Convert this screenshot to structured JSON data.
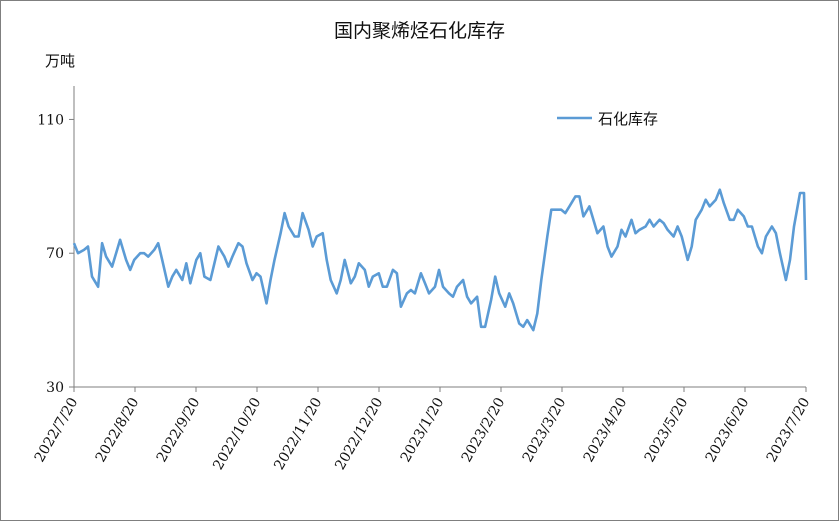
{
  "chart_data": {
    "type": "line",
    "title": "国内聚烯烃石化库存",
    "ylabel": "万吨",
    "ylim": [
      30,
      120
    ],
    "yticks": [
      30,
      70,
      110
    ],
    "grid": false,
    "legend_position": "top-right",
    "x_start": "2022-07-20",
    "x_end": "2023-07-20",
    "x_tick_labels": [
      "2022/7/20",
      "2022/8/20",
      "2022/9/20",
      "2022/10/20",
      "2022/11/20",
      "2022/12/20",
      "2023/1/20",
      "2023/2/20",
      "2023/3/20",
      "2023/4/20",
      "2023/5/20",
      "2023/6/20",
      "2023/7/20"
    ],
    "series": [
      {
        "name": "石化库存",
        "color": "#5b9bd5",
        "points": [
          [
            "2022-07-20",
            73
          ],
          [
            "2022-07-22",
            70
          ],
          [
            "2022-07-25",
            71
          ],
          [
            "2022-07-27",
            72
          ],
          [
            "2022-07-29",
            63
          ],
          [
            "2022-08-01",
            60
          ],
          [
            "2022-08-03",
            73
          ],
          [
            "2022-08-05",
            69
          ],
          [
            "2022-08-08",
            66
          ],
          [
            "2022-08-10",
            70
          ],
          [
            "2022-08-12",
            74
          ],
          [
            "2022-08-15",
            68
          ],
          [
            "2022-08-17",
            65
          ],
          [
            "2022-08-19",
            68
          ],
          [
            "2022-08-22",
            70
          ],
          [
            "2022-08-24",
            70
          ],
          [
            "2022-08-26",
            69
          ],
          [
            "2022-08-29",
            71
          ],
          [
            "2022-08-31",
            73
          ],
          [
            "2022-09-02",
            68
          ],
          [
            "2022-09-05",
            60
          ],
          [
            "2022-09-07",
            63
          ],
          [
            "2022-09-09",
            65
          ],
          [
            "2022-09-12",
            62
          ],
          [
            "2022-09-14",
            67
          ],
          [
            "2022-09-16",
            61
          ],
          [
            "2022-09-19",
            68
          ],
          [
            "2022-09-21",
            70
          ],
          [
            "2022-09-23",
            63
          ],
          [
            "2022-09-26",
            62
          ],
          [
            "2022-09-28",
            67
          ],
          [
            "2022-09-30",
            72
          ],
          [
            "2022-10-03",
            69
          ],
          [
            "2022-10-05",
            66
          ],
          [
            "2022-10-07",
            69
          ],
          [
            "2022-10-10",
            73
          ],
          [
            "2022-10-12",
            72
          ],
          [
            "2022-10-14",
            67
          ],
          [
            "2022-10-17",
            62
          ],
          [
            "2022-10-19",
            64
          ],
          [
            "2022-10-21",
            63
          ],
          [
            "2022-10-24",
            55
          ],
          [
            "2022-10-26",
            62
          ],
          [
            "2022-10-28",
            68
          ],
          [
            "2022-10-31",
            76
          ],
          [
            "2022-11-02",
            82
          ],
          [
            "2022-11-04",
            78
          ],
          [
            "2022-11-07",
            75
          ],
          [
            "2022-11-09",
            75
          ],
          [
            "2022-11-11",
            82
          ],
          [
            "2022-11-14",
            77
          ],
          [
            "2022-11-16",
            72
          ],
          [
            "2022-11-18",
            75
          ],
          [
            "2022-11-21",
            76
          ],
          [
            "2022-11-23",
            68
          ],
          [
            "2022-11-25",
            62
          ],
          [
            "2022-11-28",
            58
          ],
          [
            "2022-11-30",
            62
          ],
          [
            "2022-12-02",
            68
          ],
          [
            "2022-12-05",
            61
          ],
          [
            "2022-12-07",
            63
          ],
          [
            "2022-12-09",
            67
          ],
          [
            "2022-12-12",
            65
          ],
          [
            "2022-12-14",
            60
          ],
          [
            "2022-12-16",
            63
          ],
          [
            "2022-12-19",
            64
          ],
          [
            "2022-12-21",
            60
          ],
          [
            "2022-12-23",
            60
          ],
          [
            "2022-12-26",
            65
          ],
          [
            "2022-12-28",
            64
          ],
          [
            "2022-12-30",
            54
          ],
          [
            "2023-01-02",
            58
          ],
          [
            "2023-01-04",
            59
          ],
          [
            "2023-01-06",
            58
          ],
          [
            "2023-01-09",
            64
          ],
          [
            "2023-01-11",
            61
          ],
          [
            "2023-01-13",
            58
          ],
          [
            "2023-01-16",
            60
          ],
          [
            "2023-01-18",
            65
          ],
          [
            "2023-01-20",
            60
          ],
          [
            "2023-01-23",
            58
          ],
          [
            "2023-01-25",
            57
          ],
          [
            "2023-01-27",
            60
          ],
          [
            "2023-01-30",
            62
          ],
          [
            "2023-02-01",
            57
          ],
          [
            "2023-02-03",
            55
          ],
          [
            "2023-02-06",
            57
          ],
          [
            "2023-02-08",
            48
          ],
          [
            "2023-02-10",
            48
          ],
          [
            "2023-02-13",
            56
          ],
          [
            "2023-02-15",
            63
          ],
          [
            "2023-02-17",
            58
          ],
          [
            "2023-02-20",
            54
          ],
          [
            "2023-02-22",
            58
          ],
          [
            "2023-02-24",
            55
          ],
          [
            "2023-02-27",
            49
          ],
          [
            "2023-03-01",
            48
          ],
          [
            "2023-03-03",
            50
          ],
          [
            "2023-03-06",
            47
          ],
          [
            "2023-03-08",
            52
          ],
          [
            "2023-03-10",
            62
          ],
          [
            "2023-03-13",
            75
          ],
          [
            "2023-03-15",
            83
          ],
          [
            "2023-03-17",
            83
          ],
          [
            "2023-03-20",
            83
          ],
          [
            "2023-03-22",
            82
          ],
          [
            "2023-03-24",
            84
          ],
          [
            "2023-03-27",
            87
          ],
          [
            "2023-03-29",
            87
          ],
          [
            "2023-03-31",
            81
          ],
          [
            "2023-04-03",
            84
          ],
          [
            "2023-04-05",
            80
          ],
          [
            "2023-04-07",
            76
          ],
          [
            "2023-04-10",
            78
          ],
          [
            "2023-04-12",
            72
          ],
          [
            "2023-04-14",
            69
          ],
          [
            "2023-04-17",
            72
          ],
          [
            "2023-04-19",
            77
          ],
          [
            "2023-04-21",
            75
          ],
          [
            "2023-04-24",
            80
          ],
          [
            "2023-04-26",
            76
          ],
          [
            "2023-04-28",
            77
          ],
          [
            "2023-05-01",
            78
          ],
          [
            "2023-05-03",
            80
          ],
          [
            "2023-05-05",
            78
          ],
          [
            "2023-05-08",
            80
          ],
          [
            "2023-05-10",
            79
          ],
          [
            "2023-05-12",
            77
          ],
          [
            "2023-05-15",
            75
          ],
          [
            "2023-05-17",
            78
          ],
          [
            "2023-05-19",
            75
          ],
          [
            "2023-05-22",
            68
          ],
          [
            "2023-05-24",
            72
          ],
          [
            "2023-05-26",
            80
          ],
          [
            "2023-05-29",
            83
          ],
          [
            "2023-05-31",
            86
          ],
          [
            "2023-06-02",
            84
          ],
          [
            "2023-06-05",
            86
          ],
          [
            "2023-06-07",
            89
          ],
          [
            "2023-06-09",
            85
          ],
          [
            "2023-06-12",
            80
          ],
          [
            "2023-06-14",
            80
          ],
          [
            "2023-06-16",
            83
          ],
          [
            "2023-06-19",
            81
          ],
          [
            "2023-06-21",
            78
          ],
          [
            "2023-06-23",
            78
          ],
          [
            "2023-06-26",
            72
          ],
          [
            "2023-06-28",
            70
          ],
          [
            "2023-06-30",
            75
          ],
          [
            "2023-07-03",
            78
          ],
          [
            "2023-07-05",
            76
          ],
          [
            "2023-07-07",
            70
          ],
          [
            "2023-07-10",
            62
          ],
          [
            "2023-07-12",
            68
          ],
          [
            "2023-07-14",
            78
          ],
          [
            "2023-07-17",
            88
          ],
          [
            "2023-07-19",
            88
          ],
          [
            "2023-07-20",
            62
          ]
        ]
      }
    ]
  }
}
